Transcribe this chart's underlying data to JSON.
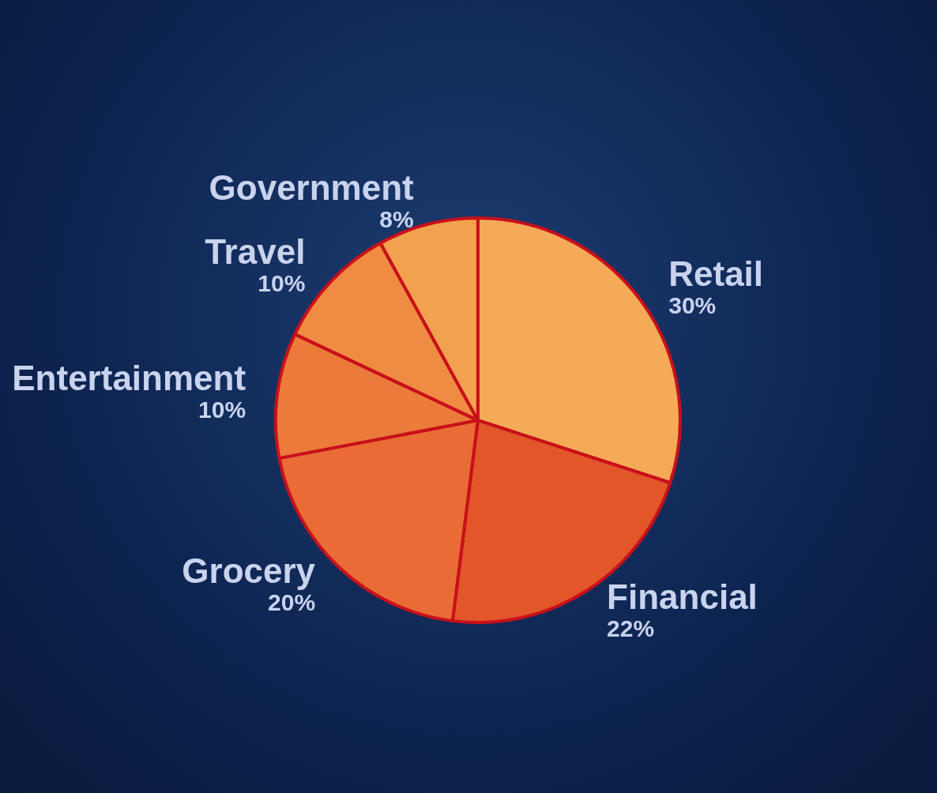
{
  "chart_data": {
    "type": "pie",
    "categories": [
      "Retail",
      "Financial",
      "Grocery",
      "Entertainment",
      "Travel",
      "Government"
    ],
    "values": [
      30,
      22,
      20,
      10,
      10,
      8
    ],
    "value_labels": [
      "30%",
      "22%",
      "20%",
      "10%",
      "10%",
      "8%"
    ],
    "colors": [
      "#f5aa58",
      "#e2562a",
      "#e96c36",
      "#ec7b3b",
      "#ef8b42",
      "#f2a14f"
    ]
  }
}
